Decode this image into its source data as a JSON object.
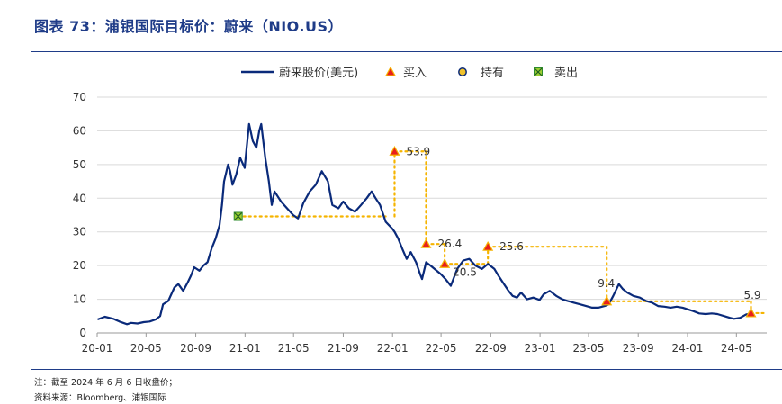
{
  "header": {
    "title": "图表 73：浦银国际目标价：蔚来（NIO.US）"
  },
  "notes": {
    "note": "注：截至 2024 年 6 月 6 日收盘价；",
    "source": "资料来源：Bloomberg、浦银国际"
  },
  "chart_data": {
    "type": "line",
    "legend": [
      "蔚来股价(美元)",
      "买入",
      "持有",
      "卖出"
    ],
    "legend_position": "top-center",
    "grid": true,
    "ylim": [
      0,
      70
    ],
    "yticks": [
      0,
      10,
      20,
      30,
      40,
      50,
      60,
      70
    ],
    "xlim": [
      "2020-01-01",
      "2024-07-15"
    ],
    "xticks": [
      "20-01",
      "20-05",
      "20-09",
      "21-01",
      "21-05",
      "21-09",
      "22-01",
      "22-05",
      "22-09",
      "23-01",
      "23-05",
      "23-09",
      "24-01",
      "24-05"
    ],
    "colors": {
      "line": "#0a2a7a",
      "buy": "#e8201b",
      "hold": "#f0c22b",
      "sell": "#2e8b2e",
      "target": "#f5b400",
      "grid": "#d9d9d9"
    },
    "series": [
      {
        "name": "蔚来股价(美元)",
        "x": [
          "2020-01-02",
          "2020-01-20",
          "2020-02-10",
          "2020-02-25",
          "2020-03-15",
          "2020-03-25",
          "2020-04-10",
          "2020-04-25",
          "2020-05-10",
          "2020-05-25",
          "2020-06-05",
          "2020-06-12",
          "2020-06-25",
          "2020-07-10",
          "2020-07-20",
          "2020-08-01",
          "2020-08-12",
          "2020-08-20",
          "2020-08-28",
          "2020-09-10",
          "2020-09-20",
          "2020-09-30",
          "2020-10-10",
          "2020-10-20",
          "2020-10-30",
          "2020-11-05",
          "2020-11-10",
          "2020-11-20",
          "2020-11-25",
          "2020-12-01",
          "2020-12-10",
          "2020-12-20",
          "2020-12-31",
          "2021-01-05",
          "2021-01-11",
          "2021-01-20",
          "2021-01-29",
          "2021-02-05",
          "2021-02-10",
          "2021-02-20",
          "2021-03-01",
          "2021-03-08",
          "2021-03-15",
          "2021-03-31",
          "2021-04-15",
          "2021-04-30",
          "2021-05-12",
          "2021-05-25",
          "2021-06-10",
          "2021-06-25",
          "2021-07-10",
          "2021-07-25",
          "2021-08-05",
          "2021-08-20",
          "2021-09-01",
          "2021-09-15",
          "2021-09-30",
          "2021-10-15",
          "2021-10-29",
          "2021-11-10",
          "2021-11-20",
          "2021-12-01",
          "2021-12-15",
          "2021-12-31",
          "2022-01-06",
          "2022-01-15",
          "2022-01-25",
          "2022-02-05",
          "2022-02-15",
          "2022-02-28",
          "2022-03-10",
          "2022-03-15",
          "2022-03-25",
          "2022-04-05",
          "2022-04-15",
          "2022-04-30",
          "2022-05-12",
          "2022-05-25",
          "2022-06-10",
          "2022-06-25",
          "2022-07-10",
          "2022-07-25",
          "2022-08-10",
          "2022-08-25",
          "2022-09-10",
          "2022-09-20",
          "2022-10-01",
          "2022-10-15",
          "2022-10-25",
          "2022-11-05",
          "2022-11-15",
          "2022-11-30",
          "2022-12-15",
          "2022-12-31",
          "2023-01-10",
          "2023-01-25",
          "2023-02-10",
          "2023-02-25",
          "2023-03-10",
          "2023-03-25",
          "2023-04-10",
          "2023-04-25",
          "2023-05-10",
          "2023-05-25",
          "2023-06-10",
          "2023-06-20",
          "2023-07-01",
          "2023-07-15",
          "2023-07-25",
          "2023-08-05",
          "2023-08-20",
          "2023-09-05",
          "2023-09-20",
          "2023-10-05",
          "2023-10-20",
          "2023-11-05",
          "2023-11-20",
          "2023-12-05",
          "2023-12-20",
          "2024-01-02",
          "2024-01-15",
          "2024-01-30",
          "2024-02-15",
          "2024-03-01",
          "2024-03-15",
          "2024-04-01",
          "2024-04-15",
          "2024-04-25",
          "2024-05-10",
          "2024-05-25",
          "2024-06-06"
        ],
        "y": [
          4.0,
          4.8,
          4.2,
          3.4,
          2.6,
          3.0,
          2.8,
          3.2,
          3.4,
          4.0,
          5.0,
          8.5,
          9.5,
          13.5,
          14.5,
          12.5,
          15.0,
          17.0,
          19.5,
          18.5,
          20.0,
          21.0,
          25.0,
          28.0,
          32.0,
          38.0,
          45.0,
          50.0,
          48.0,
          44.0,
          47.0,
          52.0,
          49.0,
          55.0,
          62.0,
          57.0,
          55.0,
          60.0,
          62.0,
          52.0,
          45.0,
          38.0,
          42.0,
          39.0,
          37.0,
          35.0,
          34.0,
          38.5,
          42.0,
          44.0,
          48.0,
          45.0,
          38.0,
          37.0,
          39.0,
          37.0,
          36.0,
          38.0,
          40.0,
          42.0,
          40.0,
          38.0,
          33.0,
          31.0,
          30.0,
          28.0,
          25.0,
          22.0,
          24.0,
          21.0,
          17.5,
          16.0,
          21.0,
          20.0,
          19.0,
          17.5,
          16.0,
          14.0,
          19.0,
          21.5,
          22.0,
          20.0,
          19.0,
          20.5,
          19.0,
          17.0,
          15.0,
          12.5,
          11.0,
          10.5,
          12.0,
          10.0,
          10.5,
          9.8,
          11.5,
          12.5,
          11.0,
          10.0,
          9.5,
          9.0,
          8.5,
          8.0,
          7.5,
          7.5,
          8.0,
          8.5,
          11.0,
          14.5,
          13.0,
          12.0,
          11.0,
          10.5,
          9.5,
          9.0,
          8.0,
          7.8,
          7.5,
          7.8,
          7.5,
          7.0,
          6.5,
          5.8,
          5.6,
          5.8,
          5.6,
          5.0,
          4.5,
          4.2,
          4.5,
          5.5,
          5.6
        ]
      }
    ],
    "ratings": [
      {
        "date": "2020-12-15",
        "type": "sell",
        "target": 34.6,
        "until": "2021-12-15"
      },
      {
        "date": "2022-01-06",
        "type": "buy",
        "target": 53.9,
        "label": "53.9",
        "until": "2022-03-25"
      },
      {
        "date": "2022-03-25",
        "type": "buy",
        "target": 26.4,
        "label": "26.4",
        "until": "2022-05-10"
      },
      {
        "date": "2022-05-10",
        "type": "buy",
        "target": 20.5,
        "label": "20.5",
        "until": "2022-08-25"
      },
      {
        "date": "2022-08-25",
        "type": "buy",
        "target": 25.6,
        "label": "25.6",
        "until": "2023-06-15"
      },
      {
        "date": "2023-06-15",
        "type": "buy",
        "target": 9.4,
        "label": "9.4",
        "until": "2024-06-06"
      },
      {
        "date": "2024-06-06",
        "type": "buy",
        "target": 5.9,
        "label": "5.9",
        "until": "2024-07-15"
      }
    ]
  }
}
